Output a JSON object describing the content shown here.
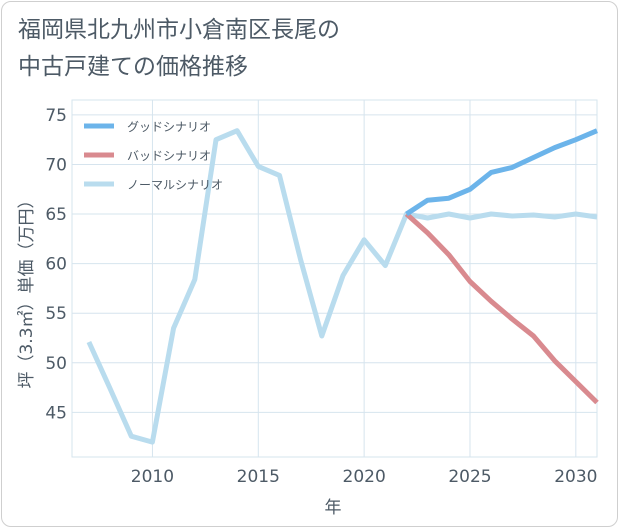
{
  "chart_data": {
    "type": "line",
    "title": "福岡県北九州市小倉南区長尾の中古戸建ての価格推移",
    "title_lines": [
      "福岡県北九州市小倉南区長尾の",
      "中古戸建ての価格推移"
    ],
    "xlabel": "年",
    "ylabel": "坪（3.3㎡）単価（万円）",
    "xlim": [
      2006.2,
      2031.0
    ],
    "ylim": [
      40.5,
      76.5
    ],
    "xticks": [
      2010,
      2015,
      2020,
      2025,
      2030
    ],
    "yticks": [
      45,
      50,
      55,
      60,
      65,
      70,
      75
    ],
    "grid": true,
    "legend_position": "top-left",
    "series": [
      {
        "name": "グッドシナリオ",
        "color": "#6cb4ea",
        "x": [
          2022,
          2023,
          2024,
          2025,
          2026,
          2027,
          2028,
          2029,
          2030,
          2031
        ],
        "y": [
          65.0,
          66.4,
          66.6,
          67.5,
          69.2,
          69.7,
          70.7,
          71.7,
          72.5,
          73.4
        ]
      },
      {
        "name": "バッドシナリオ",
        "color": "#d98a8f",
        "x": [
          2022,
          2023,
          2024,
          2025,
          2026,
          2027,
          2028,
          2029,
          2030,
          2031
        ],
        "y": [
          65.0,
          63.1,
          60.9,
          58.2,
          56.2,
          54.4,
          52.7,
          50.2,
          48.1,
          46.0
        ]
      },
      {
        "name": "ノーマルシナリオ",
        "color": "#b9dcee",
        "x": [
          2007,
          2008,
          2009,
          2010,
          2011,
          2012,
          2013,
          2014,
          2015,
          2016,
          2017,
          2018,
          2019,
          2020,
          2021,
          2022,
          2023,
          2024,
          2025,
          2026,
          2027,
          2028,
          2029,
          2030,
          2031
        ],
        "y": [
          52.1,
          47.4,
          42.6,
          42.0,
          53.5,
          58.4,
          72.5,
          73.4,
          69.8,
          68.9,
          60.4,
          52.7,
          58.8,
          62.4,
          59.8,
          65.0,
          64.6,
          65.0,
          64.6,
          65.0,
          64.8,
          64.9,
          64.7,
          65.0,
          64.7
        ]
      }
    ]
  }
}
